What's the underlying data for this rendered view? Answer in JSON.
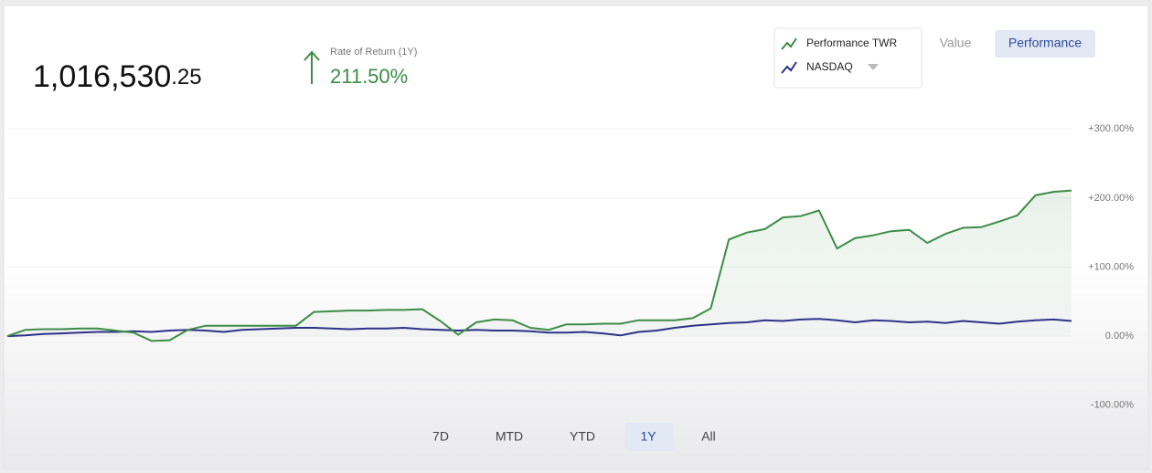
{
  "header": {
    "value_main": "1,016,530",
    "value_cents": ".25",
    "rate_label": "Rate of Return (1Y)",
    "rate_value": "211.50%"
  },
  "view_toggle": [
    "Value",
    "Performance"
  ],
  "active_view": 1,
  "range_buttons": [
    "7D",
    "MTD",
    "YTD",
    "1Y",
    "All"
  ],
  "active_range": 3,
  "chart_data": {
    "type": "line",
    "series": [
      {
        "name": "Performance TWR",
        "color": "#3d8c47",
        "area": true,
        "values": [
          0,
          9,
          10,
          10,
          11,
          11,
          8,
          5,
          -7,
          -6,
          9,
          15,
          15,
          15,
          15,
          15,
          15,
          35,
          36,
          37,
          37,
          38,
          38,
          39,
          22,
          2,
          20,
          24,
          23,
          12,
          9,
          17,
          17,
          18,
          18,
          23,
          23,
          23,
          26,
          40,
          140,
          150,
          155,
          172,
          174,
          182,
          127,
          142,
          146,
          152,
          154,
          135,
          148,
          157,
          158,
          166,
          175,
          204,
          209,
          211
        ]
      },
      {
        "name": "NASDAQ",
        "color": "#2e2f8a",
        "values": [
          0,
          1,
          3,
          4,
          5,
          6,
          6,
          7,
          6,
          8,
          9,
          8,
          6,
          9,
          10,
          11,
          12,
          12,
          11,
          10,
          11,
          11,
          12,
          10,
          9,
          8,
          9,
          8,
          8,
          7,
          5,
          5,
          6,
          4,
          1,
          6,
          8,
          12,
          15,
          17,
          19,
          20,
          23,
          22,
          24,
          25,
          23,
          20,
          23,
          22,
          20,
          21,
          19,
          22,
          20,
          18,
          21,
          23,
          24,
          22
        ]
      }
    ],
    "ylim": [
      -115,
      315
    ],
    "yticks": [
      {
        "value": -100,
        "label": "-100.00%"
      },
      {
        "value": 0,
        "label": "0.00%"
      },
      {
        "value": 100,
        "label": "+100.00%"
      },
      {
        "value": 200,
        "label": "+200.00%"
      },
      {
        "value": 300,
        "label": "+300.00%"
      }
    ],
    "grid": true
  }
}
